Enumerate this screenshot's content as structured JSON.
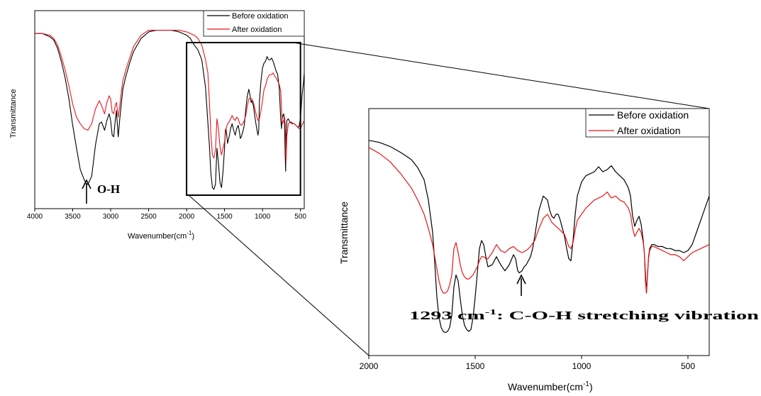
{
  "colors": {
    "before": "#000000",
    "after": "#e8161b"
  },
  "chart_data": [
    {
      "type": "line",
      "title": "",
      "xlabel": "Wavenumber(cm",
      "xlabel_sup": "-1",
      "xlabel_close": ")",
      "ylabel": "Transmittance",
      "xlim": [
        4000,
        450
      ],
      "x_reversed": true,
      "ylim": [
        0,
        1
      ],
      "xticks": [
        4000,
        3500,
        3000,
        2500,
        2000,
        1500,
        1000,
        500
      ],
      "xtick_labels": [
        "4000",
        "3500",
        "3000",
        "2500",
        "2000",
        "1500",
        "1000",
        "500"
      ],
      "legend_position": "top-right",
      "grid": false,
      "series": [
        {
          "name": "Before oxidation",
          "color": "#000000",
          "x": [
            4000,
            3900,
            3800,
            3750,
            3700,
            3650,
            3600,
            3550,
            3500,
            3450,
            3400,
            3350,
            3320,
            3300,
            3250,
            3200,
            3150,
            3120,
            3080,
            3050,
            3020,
            3000,
            2980,
            2960,
            2940,
            2925,
            2900,
            2880,
            2860,
            2840,
            2800,
            2750,
            2700,
            2600,
            2500,
            2400,
            2300,
            2200,
            2100,
            2000,
            1950,
            1900,
            1850,
            1800,
            1750,
            1700,
            1680,
            1660,
            1640,
            1620,
            1600,
            1580,
            1560,
            1540,
            1520,
            1500,
            1490,
            1480,
            1460,
            1440,
            1420,
            1400,
            1380,
            1360,
            1340,
            1320,
            1300,
            1293,
            1280,
            1260,
            1240,
            1220,
            1200,
            1180,
            1160,
            1150,
            1140,
            1120,
            1100,
            1080,
            1060,
            1050,
            1040,
            1020,
            1000,
            980,
            960,
            940,
            920,
            900,
            880,
            860,
            840,
            820,
            800,
            780,
            760,
            750,
            740,
            720,
            710,
            700,
            695,
            690,
            680,
            660,
            640,
            620,
            600,
            580,
            560,
            540,
            520,
            500,
            480,
            460,
            450
          ],
          "y": [
            0.96,
            0.96,
            0.94,
            0.92,
            0.87,
            0.79,
            0.69,
            0.56,
            0.4,
            0.26,
            0.13,
            0.07,
            0.04,
            0.04,
            0.09,
            0.28,
            0.41,
            0.42,
            0.37,
            0.43,
            0.47,
            0.43,
            0.34,
            0.33,
            0.43,
            0.49,
            0.33,
            0.44,
            0.53,
            0.62,
            0.7,
            0.78,
            0.85,
            0.93,
            0.97,
            0.98,
            0.98,
            0.98,
            0.97,
            0.95,
            0.93,
            0.89,
            0.86,
            0.8,
            0.63,
            0.28,
            0.11,
            0.02,
            0.01,
            0.04,
            0.26,
            0.17,
            0.05,
            0.02,
            0.12,
            0.26,
            0.37,
            0.38,
            0.29,
            0.33,
            0.38,
            0.41,
            0.37,
            0.34,
            0.38,
            0.4,
            0.35,
            0.32,
            0.33,
            0.36,
            0.4,
            0.5,
            0.58,
            0.62,
            0.57,
            0.54,
            0.55,
            0.52,
            0.45,
            0.39,
            0.34,
            0.37,
            0.55,
            0.67,
            0.75,
            0.78,
            0.79,
            0.82,
            0.8,
            0.8,
            0.81,
            0.79,
            0.76,
            0.73,
            0.71,
            0.63,
            0.44,
            0.38,
            0.45,
            0.47,
            0.4,
            0.2,
            0.12,
            0.32,
            0.43,
            0.44,
            0.42,
            0.42,
            0.41,
            0.41,
            0.4,
            0.39,
            0.39,
            0.44,
            0.58,
            0.66,
            0.72
          ]
        },
        {
          "name": "After oxidation",
          "color": "#e8161b",
          "x": [
            4000,
            3900,
            3800,
            3750,
            3700,
            3650,
            3600,
            3550,
            3500,
            3450,
            3400,
            3350,
            3300,
            3250,
            3200,
            3150,
            3120,
            3080,
            3050,
            3020,
            3000,
            2980,
            2960,
            2940,
            2925,
            2900,
            2880,
            2860,
            2840,
            2800,
            2750,
            2700,
            2600,
            2500,
            2400,
            2300,
            2200,
            2100,
            2000,
            1950,
            1900,
            1850,
            1800,
            1750,
            1720,
            1700,
            1680,
            1660,
            1640,
            1620,
            1600,
            1580,
            1560,
            1540,
            1520,
            1500,
            1490,
            1480,
            1460,
            1440,
            1420,
            1400,
            1380,
            1360,
            1340,
            1320,
            1300,
            1280,
            1260,
            1240,
            1220,
            1200,
            1180,
            1160,
            1150,
            1140,
            1120,
            1100,
            1080,
            1060,
            1040,
            1020,
            1000,
            980,
            960,
            940,
            920,
            900,
            880,
            860,
            840,
            820,
            800,
            780,
            760,
            750,
            740,
            720,
            710,
            700,
            695,
            690,
            680,
            660,
            640,
            620,
            600,
            580,
            560,
            540,
            520,
            500,
            480,
            460,
            450
          ],
          "y": [
            0.96,
            0.96,
            0.95,
            0.93,
            0.89,
            0.82,
            0.74,
            0.64,
            0.53,
            0.45,
            0.41,
            0.38,
            0.37,
            0.41,
            0.5,
            0.55,
            0.52,
            0.47,
            0.54,
            0.58,
            0.56,
            0.48,
            0.47,
            0.52,
            0.54,
            0.45,
            0.52,
            0.6,
            0.67,
            0.74,
            0.81,
            0.88,
            0.95,
            0.98,
            0.98,
            0.98,
            0.98,
            0.98,
            0.97,
            0.96,
            0.95,
            0.93,
            0.89,
            0.8,
            0.72,
            0.55,
            0.35,
            0.22,
            0.2,
            0.25,
            0.44,
            0.38,
            0.27,
            0.22,
            0.26,
            0.3,
            0.34,
            0.38,
            0.41,
            0.42,
            0.44,
            0.46,
            0.44,
            0.43,
            0.45,
            0.44,
            0.41,
            0.4,
            0.41,
            0.43,
            0.46,
            0.52,
            0.56,
            0.57,
            0.56,
            0.56,
            0.54,
            0.5,
            0.46,
            0.43,
            0.44,
            0.49,
            0.55,
            0.62,
            0.64,
            0.68,
            0.7,
            0.71,
            0.71,
            0.72,
            0.7,
            0.69,
            0.67,
            0.65,
            0.61,
            0.51,
            0.41,
            0.43,
            0.45,
            0.4,
            0.23,
            0.18,
            0.33,
            0.41,
            0.42,
            0.41,
            0.41,
            0.41,
            0.4,
            0.39,
            0.38,
            0.38,
            0.4,
            0.42,
            0.43
          ]
        }
      ],
      "annotations": [
        {
          "text": "O-H",
          "x": 3300
        }
      ],
      "zoom_box": {
        "x_from": 2000,
        "x_to": 500
      }
    },
    {
      "type": "line",
      "title": "",
      "xlabel": "Wavenumber(cm",
      "xlabel_sup": "-1",
      "xlabel_close": ")",
      "ylabel": "Transmittance",
      "xlim": [
        2000,
        400
      ],
      "x_reversed": true,
      "ylim": [
        0,
        1
      ],
      "xticks": [
        2000,
        1500,
        1000,
        500
      ],
      "xtick_labels": [
        "2000",
        "1500",
        "1000",
        "500"
      ],
      "legend_position": "top-right",
      "grid": false,
      "series": [
        {
          "name": "Before oxidation",
          "color": "#000000",
          "x": [
            2000,
            1950,
            1900,
            1850,
            1800,
            1770,
            1740,
            1720,
            1700,
            1690,
            1680,
            1670,
            1660,
            1650,
            1640,
            1630,
            1620,
            1610,
            1600,
            1590,
            1580,
            1570,
            1560,
            1550,
            1540,
            1530,
            1520,
            1510,
            1500,
            1490,
            1480,
            1470,
            1460,
            1450,
            1440,
            1420,
            1400,
            1380,
            1360,
            1340,
            1320,
            1310,
            1300,
            1293,
            1280,
            1270,
            1260,
            1250,
            1240,
            1230,
            1220,
            1210,
            1200,
            1180,
            1160,
            1150,
            1140,
            1130,
            1120,
            1110,
            1100,
            1090,
            1080,
            1070,
            1060,
            1050,
            1040,
            1030,
            1020,
            1000,
            980,
            960,
            940,
            920,
            900,
            880,
            860,
            840,
            820,
            800,
            780,
            770,
            760,
            750,
            740,
            730,
            720,
            710,
            705,
            700,
            695,
            690,
            685,
            680,
            670,
            660,
            640,
            620,
            600,
            580,
            560,
            540,
            520,
            500,
            480,
            460,
            440,
            420,
            400
          ],
          "y": [
            0.955,
            0.945,
            0.925,
            0.895,
            0.86,
            0.82,
            0.76,
            0.66,
            0.5,
            0.35,
            0.18,
            0.08,
            0.03,
            0.01,
            0.005,
            0.01,
            0.03,
            0.09,
            0.23,
            0.29,
            0.26,
            0.17,
            0.09,
            0.04,
            0.02,
            0.01,
            0.02,
            0.08,
            0.18,
            0.3,
            0.42,
            0.46,
            0.44,
            0.38,
            0.33,
            0.34,
            0.38,
            0.34,
            0.31,
            0.34,
            0.39,
            0.37,
            0.31,
            0.3,
            0.31,
            0.33,
            0.34,
            0.36,
            0.38,
            0.42,
            0.48,
            0.55,
            0.61,
            0.68,
            0.66,
            0.61,
            0.58,
            0.57,
            0.59,
            0.59,
            0.56,
            0.52,
            0.48,
            0.42,
            0.37,
            0.36,
            0.46,
            0.59,
            0.68,
            0.75,
            0.78,
            0.79,
            0.8,
            0.825,
            0.8,
            0.81,
            0.83,
            0.8,
            0.78,
            0.76,
            0.72,
            0.68,
            0.58,
            0.53,
            0.56,
            0.58,
            0.54,
            0.46,
            0.4,
            0.3,
            0.2,
            0.29,
            0.38,
            0.42,
            0.44,
            0.44,
            0.43,
            0.43,
            0.42,
            0.42,
            0.41,
            0.41,
            0.4,
            0.41,
            0.44,
            0.5,
            0.56,
            0.62,
            0.68
          ]
        },
        {
          "name": "After oxidation",
          "color": "#e8161b",
          "x": [
            2000,
            1950,
            1900,
            1850,
            1800,
            1770,
            1740,
            1720,
            1700,
            1690,
            1680,
            1670,
            1660,
            1650,
            1640,
            1630,
            1620,
            1610,
            1600,
            1590,
            1580,
            1570,
            1560,
            1550,
            1540,
            1530,
            1520,
            1510,
            1500,
            1490,
            1480,
            1470,
            1460,
            1450,
            1440,
            1420,
            1400,
            1380,
            1360,
            1340,
            1320,
            1300,
            1280,
            1260,
            1240,
            1220,
            1200,
            1180,
            1160,
            1150,
            1140,
            1120,
            1100,
            1080,
            1070,
            1060,
            1050,
            1040,
            1030,
            1020,
            1000,
            980,
            960,
            940,
            920,
            900,
            880,
            860,
            840,
            820,
            800,
            780,
            770,
            760,
            750,
            740,
            730,
            720,
            710,
            705,
            700,
            695,
            690,
            685,
            680,
            670,
            660,
            640,
            620,
            600,
            580,
            560,
            540,
            520,
            500,
            480,
            460,
            440,
            420,
            400
          ],
          "y": [
            0.92,
            0.89,
            0.85,
            0.79,
            0.72,
            0.66,
            0.59,
            0.52,
            0.44,
            0.38,
            0.32,
            0.26,
            0.22,
            0.2,
            0.2,
            0.21,
            0.24,
            0.29,
            0.42,
            0.45,
            0.4,
            0.34,
            0.3,
            0.28,
            0.27,
            0.27,
            0.28,
            0.29,
            0.31,
            0.33,
            0.36,
            0.38,
            0.38,
            0.37,
            0.37,
            0.4,
            0.44,
            0.41,
            0.4,
            0.42,
            0.43,
            0.41,
            0.4,
            0.41,
            0.43,
            0.46,
            0.52,
            0.57,
            0.59,
            0.57,
            0.55,
            0.53,
            0.51,
            0.49,
            0.46,
            0.43,
            0.42,
            0.45,
            0.51,
            0.56,
            0.59,
            0.62,
            0.64,
            0.66,
            0.67,
            0.68,
            0.7,
            0.67,
            0.68,
            0.66,
            0.65,
            0.62,
            0.59,
            0.52,
            0.48,
            0.5,
            0.52,
            0.5,
            0.45,
            0.4,
            0.26,
            0.2,
            0.3,
            0.37,
            0.41,
            0.43,
            0.43,
            0.42,
            0.41,
            0.4,
            0.39,
            0.39,
            0.38,
            0.36,
            0.38,
            0.4,
            0.41,
            0.42,
            0.43,
            0.44
          ]
        }
      ],
      "annotations": [
        {
          "text": "1293 cm",
          "sup": "-1",
          "rest": ": C-O-H stretching vibration",
          "x": 1293
        }
      ]
    }
  ]
}
